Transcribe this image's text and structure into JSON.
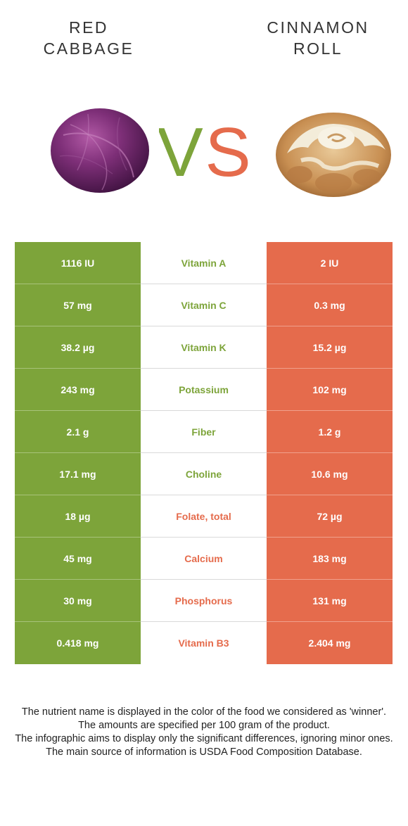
{
  "colors": {
    "left": "#7da43a",
    "right": "#e56b4c"
  },
  "left_food": {
    "name_lines": [
      "RED",
      "CABBAGE"
    ],
    "image": "red-cabbage-image"
  },
  "right_food": {
    "name_lines": [
      "CINNAMON",
      "ROLL"
    ],
    "image": "cinnamon-roll-image"
  },
  "vs": {
    "v": "V",
    "s": "S"
  },
  "rows": [
    {
      "nutrient": "Vitamin A",
      "left": "1116 IU",
      "right": "2 IU",
      "winner": "left"
    },
    {
      "nutrient": "Vitamin C",
      "left": "57 mg",
      "right": "0.3 mg",
      "winner": "left"
    },
    {
      "nutrient": "Vitamin K",
      "left": "38.2 µg",
      "right": "15.2 µg",
      "winner": "left"
    },
    {
      "nutrient": "Potassium",
      "left": "243 mg",
      "right": "102 mg",
      "winner": "left"
    },
    {
      "nutrient": "Fiber",
      "left": "2.1 g",
      "right": "1.2 g",
      "winner": "left"
    },
    {
      "nutrient": "Choline",
      "left": "17.1 mg",
      "right": "10.6 mg",
      "winner": "left"
    },
    {
      "nutrient": "Folate, total",
      "left": "18 µg",
      "right": "72 µg",
      "winner": "right"
    },
    {
      "nutrient": "Calcium",
      "left": "45 mg",
      "right": "183 mg",
      "winner": "right"
    },
    {
      "nutrient": "Phosphorus",
      "left": "30 mg",
      "right": "131 mg",
      "winner": "right"
    },
    {
      "nutrient": "Vitamin B3",
      "left": "0.418 mg",
      "right": "2.404 mg",
      "winner": "right"
    }
  ],
  "notes": [
    "The nutrient name is displayed in the color of the food we considered as 'winner'.",
    "The amounts are specified per 100 gram of the product.",
    "The infographic aims to display only the significant differences, ignoring minor ones.",
    "The main source of information is USDA Food Composition Database."
  ]
}
